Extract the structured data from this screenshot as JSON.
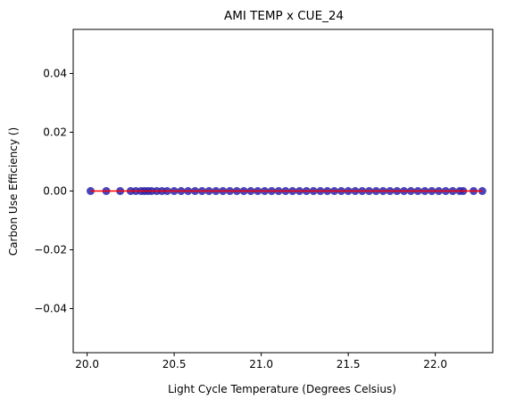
{
  "chart_data": {
    "type": "scatter",
    "title": "AMI TEMP x CUE_24",
    "xlabel": "Light Cycle Temperature (Degrees Celsius)",
    "ylabel": "Carbon Use Efficiency ()",
    "xlim": [
      19.92,
      22.33
    ],
    "ylim": [
      -0.055,
      0.055
    ],
    "xticks": [
      20.0,
      20.5,
      21.0,
      21.5,
      22.0
    ],
    "xtick_labels": [
      "20.0",
      "20.5",
      "21.0",
      "21.5",
      "22.0"
    ],
    "yticks": [
      -0.04,
      -0.02,
      0.0,
      0.02,
      0.04
    ],
    "ytick_labels": [
      "−0.04",
      "−0.02",
      "0.00",
      "0.02",
      "0.04"
    ],
    "grid": false,
    "series": [
      {
        "marker_color": "#2a23a8",
        "x": [
          20.02,
          20.11,
          20.19,
          20.25,
          20.28,
          20.31,
          20.33,
          20.35,
          20.37,
          20.4,
          20.43,
          20.46,
          20.5,
          20.54,
          20.58,
          20.62,
          20.66,
          20.7,
          20.74,
          20.78,
          20.82,
          20.86,
          20.9,
          20.94,
          20.98,
          21.02,
          21.06,
          21.1,
          21.14,
          21.18,
          21.22,
          21.26,
          21.3,
          21.34,
          21.38,
          21.42,
          21.46,
          21.5,
          21.54,
          21.58,
          21.62,
          21.66,
          21.7,
          21.74,
          21.78,
          21.82,
          21.86,
          21.9,
          21.94,
          21.98,
          22.02,
          22.06,
          22.1,
          22.14,
          22.16,
          22.22,
          22.27
        ],
        "y": [
          0,
          0,
          0,
          0,
          0,
          0,
          0,
          0,
          0,
          0,
          0,
          0,
          0,
          0,
          0,
          0,
          0,
          0,
          0,
          0,
          0,
          0,
          0,
          0,
          0,
          0,
          0,
          0,
          0,
          0,
          0,
          0,
          0,
          0,
          0,
          0,
          0,
          0,
          0,
          0,
          0,
          0,
          0,
          0,
          0,
          0,
          0,
          0,
          0,
          0,
          0,
          0,
          0,
          0,
          0,
          0,
          0
        ]
      }
    ],
    "fit_line": {
      "color": "#ff0000",
      "x": [
        20.02,
        22.27
      ],
      "y": [
        0,
        0
      ]
    }
  }
}
